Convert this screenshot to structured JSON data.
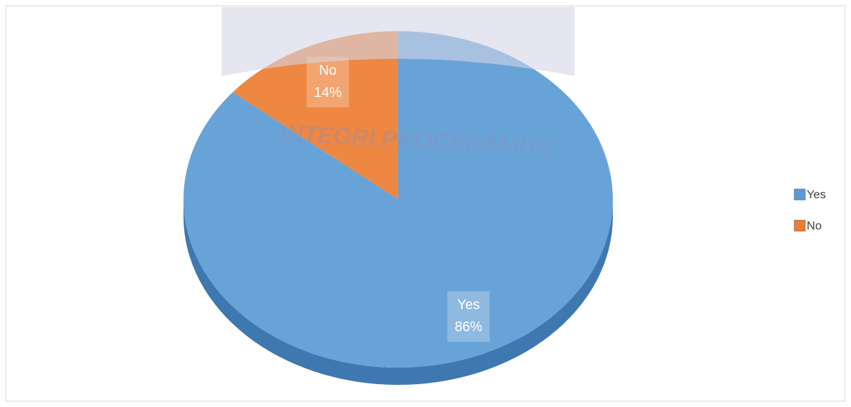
{
  "chart_data": {
    "type": "pie",
    "categories": [
      "Yes",
      "No"
    ],
    "values": [
      86,
      14
    ],
    "value_labels": [
      "86%",
      "14%"
    ],
    "colors": [
      "#5b9bd5",
      "#ed7d31"
    ],
    "legend": "right",
    "watermark": "INTEGRI PROCEDAMUS"
  }
}
